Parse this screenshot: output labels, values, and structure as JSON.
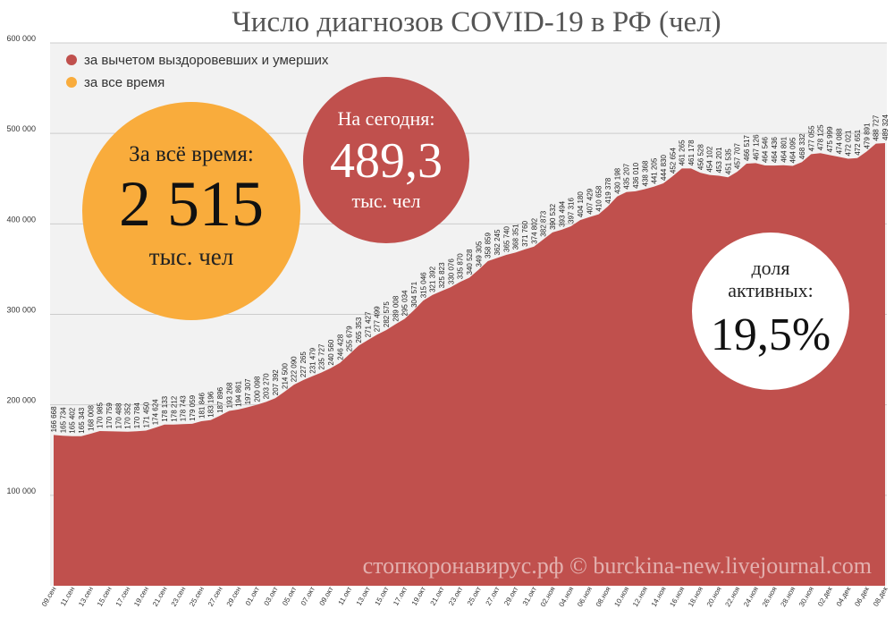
{
  "chart_data": {
    "type": "area",
    "title": "Число диагнозов COVID-19 в РФ (чел)",
    "ylim": [
      0,
      600000
    ],
    "yticks": [
      "600 000",
      "500 000",
      "400 000",
      "300 000",
      "200 000",
      "100 000"
    ],
    "grid": true,
    "legend_position": "top-left",
    "x_labels": [
      "09.сен",
      "11.сен",
      "13.сен",
      "15.сен",
      "17.сен",
      "19.сен",
      "21.сен",
      "23.сен",
      "25.сен",
      "27.сен",
      "29.сен",
      "01.окт",
      "03.окт",
      "05.окт",
      "07.окт",
      "09.окт",
      "11.окт",
      "13.окт",
      "15.окт",
      "17.окт",
      "19.окт",
      "21.окт",
      "23.окт",
      "25.окт",
      "27.окт",
      "29.окт",
      "31.окт",
      "02.ноя",
      "04.ноя",
      "06.ноя",
      "08.ноя",
      "10.ноя",
      "12.ноя",
      "14.ноя",
      "16.ноя",
      "18.ноя",
      "20.ноя",
      "22.ноя",
      "24.ноя",
      "26.ноя",
      "28.ноя",
      "30.ноя",
      "02.дек",
      "04.дек",
      "06.дек",
      "08.дек"
    ],
    "series": [
      {
        "name": "за вычетом выздоровевших и умерших",
        "color": "#c0504d",
        "values": [
          166668,
          165734,
          165402,
          165343,
          168008,
          170985,
          170759,
          170488,
          170352,
          170784,
          171450,
          174624,
          178133,
          178212,
          178743,
          179059,
          181846,
          183196,
          187896,
          193268,
          194861,
          197307,
          200098,
          203270,
          207392,
          214500,
          222090,
          227265,
          231479,
          235727,
          240560,
          246428,
          255679,
          265353,
          271427,
          277499,
          282575,
          289008,
          295034,
          304571,
          315046,
          321392,
          325823,
          330076,
          335870,
          340528,
          349305,
          358859,
          362245,
          365740,
          368351,
          371760,
          374802,
          382873,
          390532,
          393494,
          397316,
          404180,
          407429,
          410658,
          419378,
          430198,
          435207,
          436010,
          438368,
          441205,
          444830,
          452654,
          461265,
          461178,
          456528,
          454102,
          453201,
          451535,
          457707,
          466517,
          467126,
          464546,
          464436,
          464801,
          464095,
          468332,
          477055,
          478125,
          475999,
          474088,
          472021,
          472651,
          479891,
          488727,
          489324
        ],
        "labels": [
          "166 668",
          "165 734",
          "165 402",
          "165 343",
          "168 008",
          "170 985",
          "170 759",
          "170 488",
          "170 352",
          "170 784",
          "171 450",
          "174 624",
          "178 133",
          "178 212",
          "178 743",
          "179 059",
          "181 846",
          "183 196",
          "187 896",
          "193 268",
          "194 861",
          "197 307",
          "200 098",
          "203 270",
          "207 392",
          "214 500",
          "222 090",
          "227 265",
          "231 479",
          "235 727",
          "240 560",
          "246 428",
          "255 679",
          "265 353",
          "271 427",
          "277 499",
          "282 575",
          "289 008",
          "295 034",
          "304 571",
          "315 046",
          "321 392",
          "325 823",
          "330 076",
          "335 870",
          "340 528",
          "349 305",
          "358 859",
          "362 245",
          "365 740",
          "368 351",
          "371 760",
          "374 802",
          "382 873",
          "390 532",
          "393 494",
          "397 316",
          "404 180",
          "407 429",
          "410 658",
          "419 378",
          "430 198",
          "435 207",
          "436 010",
          "438 368",
          "441 205",
          "444 830",
          "452 654",
          "461 265",
          "461 178",
          "456 528",
          "454 102",
          "453 201",
          "451 535",
          "457 707",
          "466 517",
          "467 126",
          "464 546",
          "464 436",
          "464 801",
          "464 095",
          "468 332",
          "477 055",
          "478 125",
          "475 999",
          "474 088",
          "472 021",
          "472 651",
          "479 891",
          "488 727",
          "489 324"
        ]
      },
      {
        "name": "за все время",
        "color": "#f9ac3c"
      }
    ]
  },
  "callouts": {
    "total": {
      "line1": "За всё время:",
      "value": "2 515",
      "unit": "тыс. чел",
      "color": "#f9ac3c"
    },
    "today": {
      "line1": "На сегодня:",
      "value": "489,3",
      "unit": "тыс. чел",
      "color": "#c0504d"
    },
    "share": {
      "line1": "доля",
      "line2": "активных:",
      "value": "19,5%",
      "color": "#ffffff"
    }
  },
  "watermark": "стопкоронавирус.рф © burckina-new.livejournal.com"
}
